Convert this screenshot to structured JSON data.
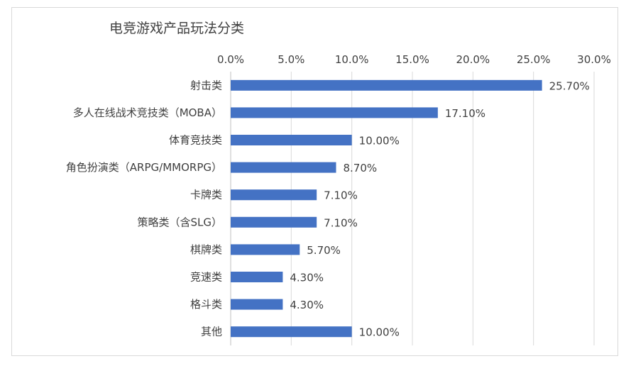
{
  "chart_data": {
    "type": "bar",
    "orientation": "horizontal",
    "title": "电竞游戏产品玩法分类",
    "x_axis_position": "top",
    "xlim": [
      0,
      30
    ],
    "x_ticks": [
      "0.0%",
      "5.0%",
      "10.0%",
      "15.0%",
      "20.0%",
      "25.0%",
      "30.0%"
    ],
    "x_tick_values": [
      0,
      5,
      10,
      15,
      20,
      25,
      30
    ],
    "grid": true,
    "legend": "none",
    "bar_color": "#4472c4",
    "categories": [
      "射击类",
      "多人在线战术竞技类（MOBA）",
      "体育竞技类",
      "角色扮演类（ARPG/MMORPG）",
      "卡牌类",
      "策略类（含SLG）",
      "棋牌类",
      "竞速类",
      "格斗类",
      "其他"
    ],
    "values": [
      25.7,
      17.1,
      10.0,
      8.7,
      7.1,
      7.1,
      5.7,
      4.3,
      4.3,
      10.0
    ],
    "data_labels": [
      "25.70%",
      "17.10%",
      "10.00%",
      "8.70%",
      "7.10%",
      "7.10%",
      "5.70%",
      "4.30%",
      "4.30%",
      "10.00%"
    ]
  }
}
